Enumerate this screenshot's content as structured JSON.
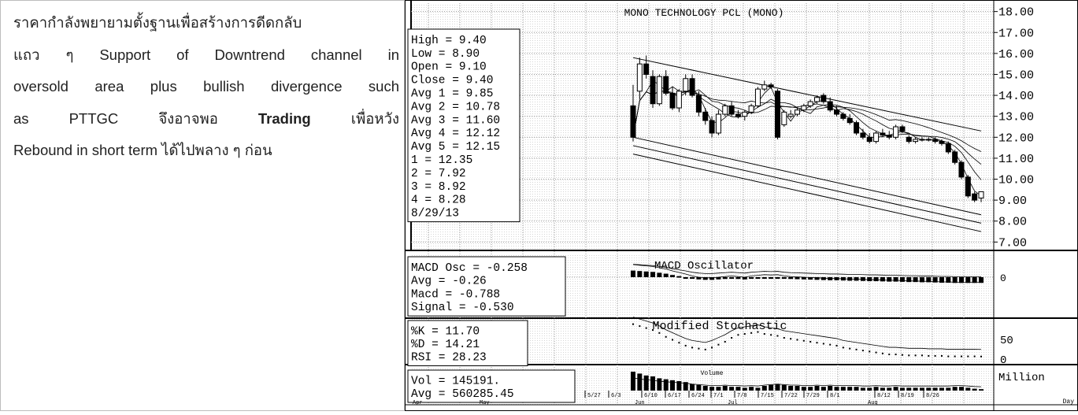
{
  "text_panel": {
    "line1": "ราคากำลังพยายามตั้งฐานเพื่อสร้างการดีดกลับ",
    "line2": "แถว ๆ Support of Downtrend channel in",
    "line3": "oversold area plus bullish divergence such",
    "line4_a": "as PTTGC จึงอาจพอ ",
    "line4_b": "Trading",
    "line4_c": " เพื่อหวัง",
    "line5": "Rebound in short term ได้ไปพลาง ๆ ก่อน"
  },
  "chart_data": [
    {
      "type": "candlestick",
      "title": "MONO TECHNOLOGY PCL (MONO)",
      "ylim": [
        6.6,
        18.4
      ],
      "yticks": [
        "18.00",
        "17.00",
        "16.00",
        "15.00",
        "14.00",
        "13.00",
        "12.00",
        "11.00",
        "10.00",
        "9.00",
        "8.00",
        "7.00"
      ],
      "info_lines": [
        "High   = 9.40",
        "Low    = 8.90",
        "Open   = 9.10",
        "Close  = 9.40",
        "Avg 1  = 9.85",
        "Avg 2  = 10.78",
        "Avg 3  = 11.60",
        "Avg 4  = 12.12",
        "Avg 5  = 12.15",
        " 1 = 12.35",
        " 2 = 7.92",
        " 3 = 8.92",
        " 4 = 8.28",
        " 8/29/13"
      ],
      "candles": [
        {
          "o": 13.5,
          "h": 14.5,
          "l": 11.8,
          "c": 12.0
        },
        {
          "o": 14.2,
          "h": 15.8,
          "l": 13.8,
          "c": 15.5
        },
        {
          "o": 15.5,
          "h": 15.9,
          "l": 14.8,
          "c": 15.0
        },
        {
          "o": 14.9,
          "h": 15.2,
          "l": 13.4,
          "c": 13.6
        },
        {
          "o": 13.6,
          "h": 15.0,
          "l": 13.5,
          "c": 14.9
        },
        {
          "o": 14.9,
          "h": 15.2,
          "l": 14.0,
          "c": 14.1
        },
        {
          "o": 14.1,
          "h": 14.4,
          "l": 13.3,
          "c": 13.4
        },
        {
          "o": 13.4,
          "h": 14.3,
          "l": 13.2,
          "c": 14.2
        },
        {
          "o": 14.2,
          "h": 15.0,
          "l": 14.0,
          "c": 14.8
        },
        {
          "o": 14.8,
          "h": 15.0,
          "l": 13.9,
          "c": 14.0
        },
        {
          "o": 14.0,
          "h": 14.2,
          "l": 13.0,
          "c": 13.2
        },
        {
          "o": 13.2,
          "h": 13.4,
          "l": 12.6,
          "c": 12.8
        },
        {
          "o": 12.8,
          "h": 13.0,
          "l": 12.0,
          "c": 12.2
        },
        {
          "o": 12.2,
          "h": 13.3,
          "l": 12.1,
          "c": 13.1
        },
        {
          "o": 13.1,
          "h": 13.6,
          "l": 13.0,
          "c": 13.5
        },
        {
          "o": 13.5,
          "h": 13.7,
          "l": 13.0,
          "c": 13.1
        },
        {
          "o": 13.1,
          "h": 13.3,
          "l": 12.9,
          "c": 13.0
        },
        {
          "o": 13.0,
          "h": 13.3,
          "l": 12.8,
          "c": 13.2
        },
        {
          "o": 13.2,
          "h": 13.6,
          "l": 13.1,
          "c": 13.5
        },
        {
          "o": 13.5,
          "h": 14.4,
          "l": 13.4,
          "c": 14.3
        },
        {
          "o": 14.3,
          "h": 14.7,
          "l": 14.2,
          "c": 14.5
        },
        {
          "o": 14.5,
          "h": 14.6,
          "l": 14.3,
          "c": 14.4
        },
        {
          "o": 14.2,
          "h": 14.3,
          "l": 11.9,
          "c": 12.0
        },
        {
          "o": 12.6,
          "h": 13.3,
          "l": 12.5,
          "c": 13.2
        },
        {
          "o": 13.0,
          "h": 13.3,
          "l": 12.9,
          "c": 13.1
        },
        {
          "o": 13.1,
          "h": 13.4,
          "l": 13.0,
          "c": 13.3
        },
        {
          "o": 13.3,
          "h": 13.6,
          "l": 13.2,
          "c": 13.5
        },
        {
          "o": 13.5,
          "h": 13.8,
          "l": 13.4,
          "c": 13.7
        },
        {
          "o": 13.7,
          "h": 14.0,
          "l": 13.6,
          "c": 13.9
        },
        {
          "o": 14.0,
          "h": 14.1,
          "l": 13.6,
          "c": 13.7
        },
        {
          "o": 13.7,
          "h": 13.9,
          "l": 13.2,
          "c": 13.3
        },
        {
          "o": 13.3,
          "h": 13.5,
          "l": 13.0,
          "c": 13.1
        },
        {
          "o": 13.1,
          "h": 13.2,
          "l": 12.8,
          "c": 12.9
        },
        {
          "o": 12.9,
          "h": 13.1,
          "l": 12.6,
          "c": 12.7
        },
        {
          "o": 12.7,
          "h": 12.8,
          "l": 12.1,
          "c": 12.2
        },
        {
          "o": 12.2,
          "h": 12.4,
          "l": 11.9,
          "c": 12.0
        },
        {
          "o": 12.0,
          "h": 12.2,
          "l": 11.7,
          "c": 11.8
        },
        {
          "o": 11.8,
          "h": 12.3,
          "l": 11.7,
          "c": 12.2
        },
        {
          "o": 12.2,
          "h": 12.4,
          "l": 12.0,
          "c": 12.1
        },
        {
          "o": 12.1,
          "h": 12.3,
          "l": 11.9,
          "c": 12.0
        },
        {
          "o": 12.0,
          "h": 12.6,
          "l": 11.9,
          "c": 12.5
        },
        {
          "o": 12.5,
          "h": 12.6,
          "l": 12.2,
          "c": 12.3
        },
        {
          "o": 12.0,
          "h": 12.1,
          "l": 11.7,
          "c": 11.8
        },
        {
          "o": 11.8,
          "h": 12.0,
          "l": 11.7,
          "c": 11.9
        },
        {
          "o": 11.9,
          "h": 12.0,
          "l": 11.8,
          "c": 11.9
        },
        {
          "o": 11.9,
          "h": 12.0,
          "l": 11.8,
          "c": 11.9
        },
        {
          "o": 11.9,
          "h": 12.0,
          "l": 11.7,
          "c": 11.8
        },
        {
          "o": 11.8,
          "h": 11.9,
          "l": 11.6,
          "c": 11.7
        },
        {
          "o": 11.7,
          "h": 11.8,
          "l": 11.2,
          "c": 11.3
        },
        {
          "o": 11.3,
          "h": 11.4,
          "l": 10.7,
          "c": 10.8
        },
        {
          "o": 10.8,
          "h": 10.9,
          "l": 10.0,
          "c": 10.1
        },
        {
          "o": 10.1,
          "h": 10.2,
          "l": 9.1,
          "c": 9.2
        },
        {
          "o": 9.3,
          "h": 9.4,
          "l": 8.9,
          "c": 9.0
        },
        {
          "o": 9.1,
          "h": 9.4,
          "l": 8.9,
          "c": 9.4
        }
      ]
    },
    {
      "type": "bar",
      "title": "MACD Oscillator",
      "info_lines": [
        "MACD Osc = -0.258",
        "Avg    = -0.26",
        "Macd   = -0.788",
        "Signal = -0.530"
      ],
      "zero_label": "0",
      "values": [
        0.3,
        0.28,
        0.26,
        0.24,
        0.2,
        0.16,
        0.1,
        0.05,
        0.0,
        -0.06,
        -0.1,
        -0.12,
        -0.12,
        -0.1,
        -0.08,
        -0.06,
        -0.08,
        -0.1,
        -0.06,
        -0.04,
        -0.02,
        -0.03,
        -0.02,
        -0.06,
        -0.08,
        -0.09,
        -0.1,
        -0.11,
        -0.12,
        -0.13,
        -0.14,
        -0.14,
        -0.15,
        -0.16,
        -0.16,
        -0.17,
        -0.18,
        -0.18,
        -0.19,
        -0.2,
        -0.2,
        -0.21,
        -0.22,
        -0.22,
        -0.23,
        -0.23,
        -0.24,
        -0.25,
        -0.25,
        -0.26,
        -0.26,
        -0.26,
        -0.26,
        -0.258
      ]
    },
    {
      "type": "line",
      "title": "Modified Stochastic",
      "info_lines": [
        "%K    = 11.70",
        "%D    = 14.21",
        "RSI   = 28.23"
      ],
      "yticks": [
        "50",
        "0"
      ],
      "k_values": [
        78,
        74,
        70,
        66,
        60,
        52,
        46,
        40,
        34,
        30,
        28,
        26,
        30,
        36,
        42,
        50,
        56,
        58,
        60,
        62,
        58,
        56,
        54,
        50,
        48,
        46,
        44,
        42,
        40,
        38,
        36,
        34,
        30,
        28,
        26,
        24,
        22,
        20,
        18,
        16,
        16,
        15,
        14,
        14,
        14,
        13,
        13,
        13,
        12,
        12,
        12,
        12,
        12,
        11.7
      ]
    },
    {
      "type": "bar",
      "title": "Volume",
      "info_lines": [
        "Vol   = 145191.",
        "Avg   = 560285.45"
      ],
      "units_label": "Million",
      "day_label": "Day",
      "values": [
        2.0,
        1.8,
        1.6,
        1.5,
        1.3,
        1.2,
        1.1,
        1.0,
        0.9,
        0.7,
        0.6,
        0.5,
        0.4,
        0.4,
        0.5,
        0.4,
        0.4,
        0.3,
        0.4,
        0.3,
        0.5,
        0.6,
        0.7,
        0.6,
        0.5,
        0.5,
        0.4,
        0.4,
        0.5,
        0.4,
        0.5,
        0.4,
        0.4,
        0.4,
        0.4,
        0.3,
        0.3,
        0.4,
        0.3,
        0.3,
        0.4,
        0.3,
        0.3,
        0.3,
        0.3,
        0.3,
        0.3,
        0.3,
        0.3,
        0.4,
        0.4,
        0.3,
        0.2,
        0.15
      ],
      "date_labels": [
        "5/27",
        "6/3",
        "6/10",
        "6/17",
        "6/24",
        "7/1",
        "7/8",
        "7/15",
        "7/22",
        "7/29",
        "8/1",
        "8/12",
        "8/19",
        "8/26"
      ],
      "month_labels": [
        "Apr",
        "May",
        "Jun",
        "Jul",
        "Aug"
      ]
    }
  ]
}
